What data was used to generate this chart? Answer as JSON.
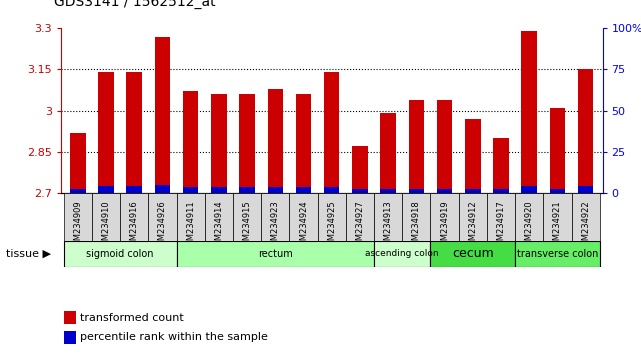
{
  "title": "GDS3141 / 1562512_at",
  "samples": [
    "GSM234909",
    "GSM234910",
    "GSM234916",
    "GSM234926",
    "GSM234911",
    "GSM234914",
    "GSM234915",
    "GSM234923",
    "GSM234924",
    "GSM234925",
    "GSM234927",
    "GSM234913",
    "GSM234918",
    "GSM234919",
    "GSM234912",
    "GSM234917",
    "GSM234920",
    "GSM234921",
    "GSM234922"
  ],
  "red_values": [
    2.92,
    3.14,
    3.14,
    3.27,
    3.07,
    3.06,
    3.06,
    3.08,
    3.06,
    3.14,
    2.87,
    2.99,
    3.04,
    3.04,
    2.97,
    2.9,
    3.29,
    3.01,
    3.15
  ],
  "blue_values": [
    2.715,
    2.724,
    2.724,
    2.728,
    2.721,
    2.72,
    2.721,
    2.721,
    2.721,
    2.721,
    2.716,
    2.716,
    2.716,
    2.715,
    2.715,
    2.715,
    2.726,
    2.716,
    2.724
  ],
  "ymin": 2.7,
  "ymax": 3.3,
  "yticks": [
    2.7,
    2.85,
    3.0,
    3.15,
    3.3
  ],
  "ytick_labels": [
    "2.7",
    "2.85",
    "3",
    "3.15",
    "3.3"
  ],
  "right_yticks_pct": [
    0,
    25,
    50,
    75,
    100
  ],
  "right_ytick_labels": [
    "0",
    "25",
    "50",
    "75",
    "100%"
  ],
  "tissue_groups": [
    {
      "label": "sigmoid colon",
      "start": 0,
      "end": 4,
      "color": "#ccffcc"
    },
    {
      "label": "rectum",
      "start": 4,
      "end": 11,
      "color": "#aaffaa"
    },
    {
      "label": "ascending colon",
      "start": 11,
      "end": 13,
      "color": "#ccffcc"
    },
    {
      "label": "cecum",
      "start": 13,
      "end": 16,
      "color": "#44dd44"
    },
    {
      "label": "transverse colon",
      "start": 16,
      "end": 19,
      "color": "#66ee66"
    }
  ],
  "bar_width": 0.55,
  "red_color": "#cc0000",
  "blue_color": "#0000cc",
  "legend_red": "transformed count",
  "legend_blue": "percentile rank within the sample"
}
